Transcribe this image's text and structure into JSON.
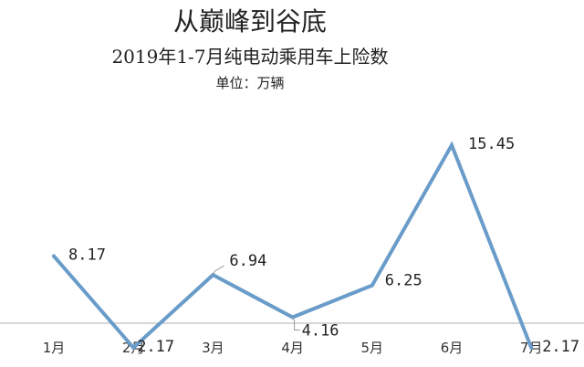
{
  "chart_data": {
    "type": "line",
    "title": "从巅峰到谷底",
    "subtitle": "2019年1-7月纯电动乘用车上险数",
    "unit_label": "单位：万辆",
    "categories": [
      "1月",
      "2月",
      "3月",
      "4月",
      "5月",
      "6月",
      "7月"
    ],
    "series": [
      {
        "values": [
          8.17,
          2.17,
          6.94,
          4.16,
          6.25,
          15.45,
          2.17
        ],
        "labels": [
          "8.17",
          "2.17",
          "6.94",
          "4.16",
          "6.25",
          "15.45",
          "2.17"
        ]
      }
    ],
    "line_color": "#6a9cc9",
    "axis_color": "#c8c8c8",
    "grid": false,
    "legend": "none"
  }
}
